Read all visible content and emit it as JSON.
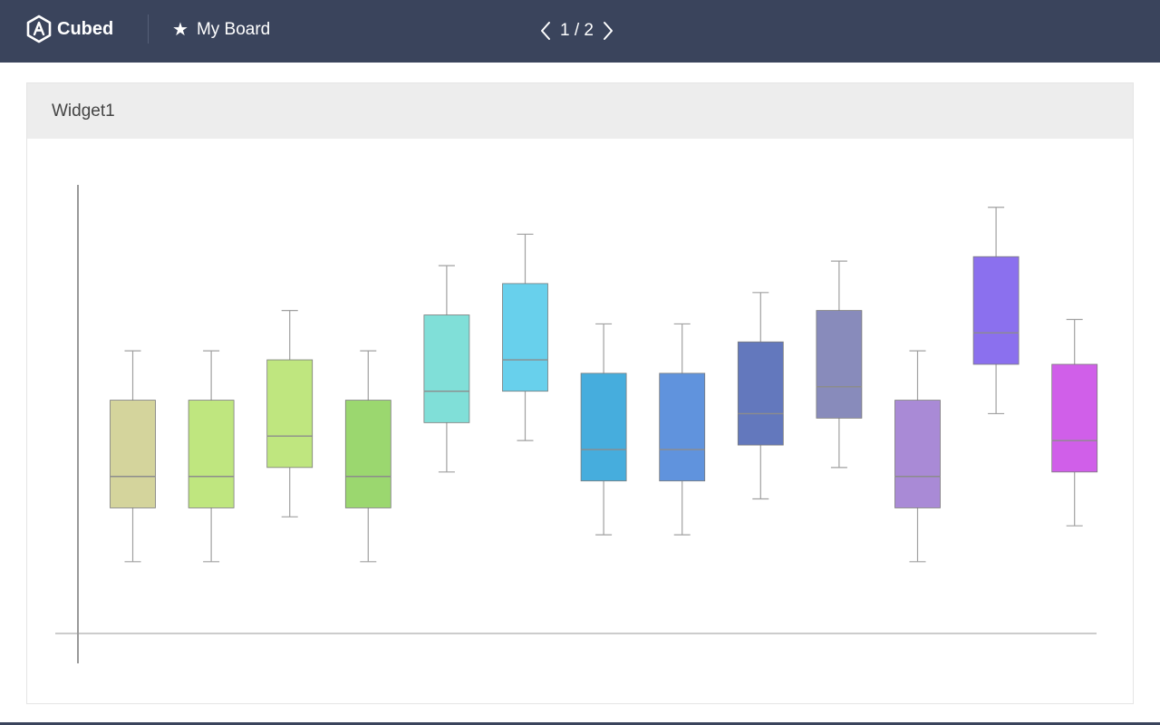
{
  "header": {
    "brand_name": "Cubed",
    "brand_icon": "hexagon-a-logo-icon",
    "board_icon": "star-icon",
    "board_title": "My Board",
    "pager": {
      "text": "1 / 2",
      "prev_icon": "chevron-left-icon",
      "next_icon": "chevron-right-icon"
    },
    "background_color": "#3a445c"
  },
  "widget": {
    "title": "Widget1"
  },
  "chart_data": {
    "type": "boxplot",
    "title": "",
    "xlabel": "",
    "ylabel": "",
    "ylim": [
      0,
      10
    ],
    "grid": false,
    "legend": "none",
    "axis_labels_visible": false,
    "boxes": [
      {
        "min": 1.6,
        "q1": 2.8,
        "median": 3.5,
        "q3": 5.2,
        "max": 6.3,
        "color": "#d4d49c"
      },
      {
        "min": 1.6,
        "q1": 2.8,
        "median": 3.5,
        "q3": 5.2,
        "max": 6.3,
        "color": "#bfe67f"
      },
      {
        "min": 2.6,
        "q1": 3.7,
        "median": 4.4,
        "q3": 6.1,
        "max": 7.2,
        "color": "#bfe67f"
      },
      {
        "min": 1.6,
        "q1": 2.8,
        "median": 3.5,
        "q3": 5.2,
        "max": 6.3,
        "color": "#9bd76f"
      },
      {
        "min": 3.6,
        "q1": 4.7,
        "median": 5.4,
        "q3": 7.1,
        "max": 8.2,
        "color": "#80dfd8"
      },
      {
        "min": 4.3,
        "q1": 5.4,
        "median": 6.1,
        "q3": 7.8,
        "max": 8.9,
        "color": "#68d0ec"
      },
      {
        "min": 2.2,
        "q1": 3.4,
        "median": 4.1,
        "q3": 5.8,
        "max": 6.9,
        "color": "#46addd"
      },
      {
        "min": 2.2,
        "q1": 3.4,
        "median": 4.1,
        "q3": 5.8,
        "max": 6.9,
        "color": "#6093dd"
      },
      {
        "min": 3.0,
        "q1": 4.2,
        "median": 4.9,
        "q3": 6.5,
        "max": 7.6,
        "color": "#6378bd"
      },
      {
        "min": 3.7,
        "q1": 4.8,
        "median": 5.5,
        "q3": 7.2,
        "max": 8.3,
        "color": "#888bbb"
      },
      {
        "min": 1.6,
        "q1": 2.8,
        "median": 3.5,
        "q3": 5.2,
        "max": 6.3,
        "color": "#a98ad6"
      },
      {
        "min": 4.9,
        "q1": 6.0,
        "median": 6.7,
        "q3": 8.4,
        "max": 9.5,
        "color": "#8b70ee"
      },
      {
        "min": 2.4,
        "q1": 3.6,
        "median": 4.3,
        "q3": 6.0,
        "max": 7.0,
        "color": "#d05fe9"
      }
    ]
  }
}
